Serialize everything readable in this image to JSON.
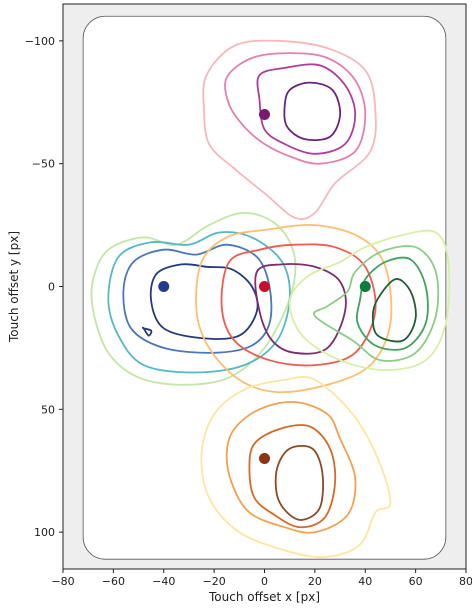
{
  "chart_data": {
    "type": "contour",
    "xlabel": "Touch offset x [px]",
    "ylabel": "Touch offset y [px]",
    "xlim": [
      -80,
      80
    ],
    "ylim": [
      -115,
      115
    ],
    "y_inverted": true,
    "grid": false,
    "legend": "none",
    "colors": {
      "plot_background": "#eeeeee",
      "device_fill": "#ffffff",
      "device_outline": "#555555",
      "frame": "#222222"
    },
    "x_ticks": [
      -80,
      -60,
      -40,
      -20,
      0,
      20,
      40,
      60,
      80
    ],
    "x_tick_labels": [
      "−80",
      "−60",
      "−40",
      "−20",
      "0",
      "20",
      "40",
      "60",
      "80"
    ],
    "y_ticks": [
      -100,
      -50,
      0,
      50,
      100
    ],
    "y_tick_labels": [
      "−100",
      "−50",
      "0",
      "50",
      "100"
    ],
    "device_outline": {
      "x0": -72,
      "x1": 72,
      "y0": -110,
      "y1": 111
    },
    "clusters": [
      {
        "target": [
          0,
          -70
        ],
        "target_color": "#7a1a6e",
        "levels": [
          {
            "color": "#f7b7bb",
            "points": [
              [
                -23,
                -86
              ],
              [
                -12,
                -98
              ],
              [
                5,
                -100
              ],
              [
                25,
                -97
              ],
              [
                40,
                -88
              ],
              [
                44,
                -72
              ],
              [
                42,
                -55
              ],
              [
                28,
                -42
              ],
              [
                20,
                -30
              ],
              [
                12,
                -28
              ],
              [
                0,
                -38
              ],
              [
                -12,
                -48
              ],
              [
                -22,
                -58
              ],
              [
                -24,
                -72
              ]
            ]
          },
          {
            "color": "#e47fae",
            "points": [
              [
                -15,
                -85
              ],
              [
                -5,
                -93
              ],
              [
                10,
                -95
              ],
              [
                25,
                -93
              ],
              [
                36,
                -84
              ],
              [
                40,
                -70
              ],
              [
                36,
                -55
              ],
              [
                22,
                -50
              ],
              [
                10,
                -53
              ],
              [
                0,
                -58
              ],
              [
                -8,
                -65
              ],
              [
                -14,
                -74
              ]
            ]
          },
          {
            "color": "#b03c98",
            "points": [
              [
                -2,
                -86
              ],
              [
                8,
                -89
              ],
              [
                22,
                -90
              ],
              [
                32,
                -82
              ],
              [
                36,
                -70
              ],
              [
                32,
                -58
              ],
              [
                20,
                -54
              ],
              [
                8,
                -58
              ],
              [
                0,
                -64
              ],
              [
                -2,
                -76
              ]
            ]
          },
          {
            "color": "#6a237f",
            "points": [
              [
                10,
                -80
              ],
              [
                18,
                -83
              ],
              [
                27,
                -80
              ],
              [
                30,
                -70
              ],
              [
                26,
                -61
              ],
              [
                16,
                -60
              ],
              [
                9,
                -65
              ],
              [
                8,
                -73
              ]
            ]
          }
        ]
      },
      {
        "target": [
          -40,
          0
        ],
        "target_color": "#243a8c",
        "levels": [
          {
            "color": "#c3e6a5",
            "points": [
              [
                -62,
                -15
              ],
              [
                -48,
                -20
              ],
              [
                -35,
                -17
              ],
              [
                -22,
                -25
              ],
              [
                -8,
                -30
              ],
              [
                5,
                -25
              ],
              [
                12,
                -12
              ],
              [
                10,
                5
              ],
              [
                0,
                25
              ],
              [
                -14,
                37
              ],
              [
                -32,
                40
              ],
              [
                -50,
                37
              ],
              [
                -62,
                27
              ],
              [
                -68,
                10
              ],
              [
                -68,
                -3
              ]
            ]
          },
          {
            "color": "#56b8c7",
            "points": [
              [
                -58,
                -12
              ],
              [
                -45,
                -18
              ],
              [
                -30,
                -17
              ],
              [
                -18,
                -22
              ],
              [
                -5,
                -20
              ],
              [
                7,
                -10
              ],
              [
                10,
                5
              ],
              [
                5,
                22
              ],
              [
                -8,
                32
              ],
              [
                -28,
                35
              ],
              [
                -48,
                32
              ],
              [
                -58,
                20
              ],
              [
                -62,
                5
              ]
            ]
          },
          {
            "color": "#4a78bb",
            "points": [
              [
                -52,
                -10
              ],
              [
                -40,
                -15
              ],
              [
                -27,
                -13
              ],
              [
                -15,
                -17
              ],
              [
                -3,
                -12
              ],
              [
                2,
                0
              ],
              [
                2,
                15
              ],
              [
                -5,
                24
              ],
              [
                -20,
                27
              ],
              [
                -40,
                25
              ],
              [
                -53,
                17
              ],
              [
                -56,
                2
              ]
            ]
          },
          {
            "color": "#243a7c",
            "points": [
              [
                -43,
                -5
              ],
              [
                -33,
                -9
              ],
              [
                -23,
                -8
              ],
              [
                -13,
                -7
              ],
              [
                -5,
                0
              ],
              [
                -3,
                10
              ],
              [
                -10,
                20
              ],
              [
                -25,
                21
              ],
              [
                -40,
                17
              ],
              [
                -45,
                6
              ]
            ]
          },
          {
            "color": "#243a7c",
            "points": [
              [
                -48,
                17
              ],
              [
                -46,
                20
              ],
              [
                -45,
                18
              ],
              [
                -48,
                17
              ]
            ]
          }
        ]
      },
      {
        "target": [
          0,
          0
        ],
        "target_color": "#c8102e",
        "levels": [
          {
            "color": "#fdbf6f",
            "points": [
              [
                -25,
                -10
              ],
              [
                -15,
                -20
              ],
              [
                0,
                -23
              ],
              [
                20,
                -25
              ],
              [
                38,
                -20
              ],
              [
                48,
                -8
              ],
              [
                50,
                15
              ],
              [
                42,
                32
              ],
              [
                25,
                40
              ],
              [
                5,
                43
              ],
              [
                -10,
                38
              ],
              [
                -22,
                25
              ],
              [
                -27,
                10
              ]
            ]
          },
          {
            "color": "#ef5b4e",
            "points": [
              [
                -14,
                -10
              ],
              [
                -2,
                -15
              ],
              [
                12,
                -17
              ],
              [
                28,
                -16
              ],
              [
                40,
                -8
              ],
              [
                44,
                10
              ],
              [
                36,
                27
              ],
              [
                20,
                32
              ],
              [
                2,
                30
              ],
              [
                -12,
                22
              ],
              [
                -17,
                8
              ]
            ]
          },
          {
            "color": "#7b2d6e",
            "points": [
              [
                -3,
                -6
              ],
              [
                7,
                -9
              ],
              [
                20,
                -8
              ],
              [
                30,
                -2
              ],
              [
                32,
                10
              ],
              [
                25,
                25
              ],
              [
                12,
                27
              ],
              [
                3,
                22
              ],
              [
                -2,
                10
              ]
            ]
          }
        ]
      },
      {
        "target": [
          40,
          0
        ],
        "target_color": "#0e7a3d",
        "levels": [
          {
            "color": "#d7efa6",
            "points": [
              [
                30,
                -10
              ],
              [
                40,
                -16
              ],
              [
                55,
                -21
              ],
              [
                68,
                -22
              ],
              [
                73,
                -10
              ],
              [
                72,
                15
              ],
              [
                64,
                30
              ],
              [
                48,
                34
              ],
              [
                30,
                30
              ],
              [
                15,
                20
              ],
              [
                10,
                6
              ],
              [
                17,
                -4
              ]
            ]
          },
          {
            "color": "#8ccc86",
            "points": [
              [
                36,
                -6
              ],
              [
                46,
                -14
              ],
              [
                60,
                -16
              ],
              [
                68,
                -6
              ],
              [
                68,
                12
              ],
              [
                60,
                27
              ],
              [
                46,
                30
              ],
              [
                35,
                22
              ],
              [
                20,
                12
              ],
              [
                25,
                8
              ],
              [
                33,
                2
              ]
            ]
          },
          {
            "color": "#41a35c",
            "points": [
              [
                40,
                -3
              ],
              [
                48,
                -10
              ],
              [
                58,
                -11
              ],
              [
                64,
                0
              ],
              [
                64,
                15
              ],
              [
                56,
                25
              ],
              [
                44,
                24
              ],
              [
                37,
                15
              ],
              [
                38,
                5
              ]
            ]
          },
          {
            "color": "#1f5e37",
            "points": [
              [
                45,
                5
              ],
              [
                52,
                -3
              ],
              [
                58,
                2
              ],
              [
                60,
                13
              ],
              [
                55,
                22
              ],
              [
                45,
                20
              ],
              [
                43,
                12
              ]
            ]
          }
        ]
      },
      {
        "target": [
          0,
          70
        ],
        "target_color": "#8b3510",
        "levels": [
          {
            "color": "#fde6a0",
            "points": [
              [
                -20,
                52
              ],
              [
                -8,
                42
              ],
              [
                8,
                38
              ],
              [
                20,
                38
              ],
              [
                35,
                52
              ],
              [
                45,
                70
              ],
              [
                50,
                88
              ],
              [
                44,
                92
              ],
              [
                38,
                105
              ],
              [
                25,
                110
              ],
              [
                10,
                108
              ],
              [
                -10,
                100
              ],
              [
                -22,
                86
              ],
              [
                -25,
                68
              ]
            ]
          },
          {
            "color": "#f5a04f",
            "points": [
              [
                -12,
                58
              ],
              [
                -2,
                50
              ],
              [
                12,
                47
              ],
              [
                25,
                52
              ],
              [
                30,
                62
              ],
              [
                36,
                78
              ],
              [
                33,
                93
              ],
              [
                20,
                100
              ],
              [
                8,
                98
              ],
              [
                -6,
                92
              ],
              [
                -13,
                80
              ],
              [
                -15,
                68
              ]
            ]
          },
          {
            "color": "#d46a26",
            "points": [
              [
                -4,
                64
              ],
              [
                6,
                58
              ],
              [
                18,
                57
              ],
              [
                26,
                66
              ],
              [
                28,
                80
              ],
              [
                24,
                94
              ],
              [
                14,
                98
              ],
              [
                4,
                93
              ],
              [
                -4,
                86
              ],
              [
                -6,
                74
              ]
            ]
          },
          {
            "color": "#8b4a26",
            "points": [
              [
                5,
                74
              ],
              [
                10,
                66
              ],
              [
                19,
                66
              ],
              [
                23,
                76
              ],
              [
                22,
                90
              ],
              [
                15,
                95
              ],
              [
                9,
                92
              ],
              [
                5,
                85
              ]
            ]
          }
        ]
      }
    ]
  }
}
